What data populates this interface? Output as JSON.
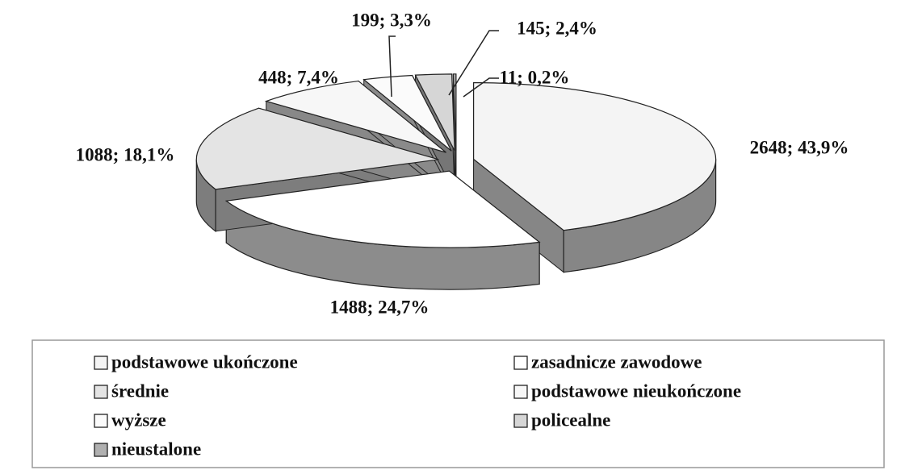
{
  "chart_data": {
    "type": "pie",
    "categories": [
      "podstawowe ukończone",
      "zasadnicze zawodowe",
      "średnie",
      "podstawowe nieukończone",
      "wyższe",
      "policealne",
      "nieustalone"
    ],
    "values": [
      2648,
      1488,
      1088,
      448,
      199,
      145,
      11
    ],
    "value_labels": [
      "2648; 43,9%",
      "1488; 24,7%",
      "1088; 18,1%",
      "448; 7,4%",
      "199; 3,3%",
      "145; 2,4%",
      "11; 0,2%"
    ],
    "colors": [
      "#f4f4f4",
      "#ffffff",
      "#e4e4e4",
      "#f7f7f7",
      "#fbfbfb",
      "#d6d6d6",
      "#b0b0b0"
    ],
    "legend": "bottom"
  }
}
